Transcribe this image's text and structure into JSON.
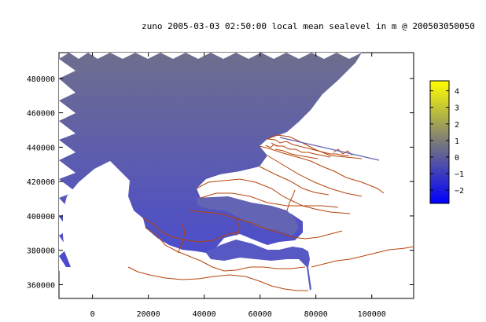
{
  "title": "zuno 2005-03-03 02:50:00 local mean sealevel in m @ 200503050050",
  "map": {
    "x_ticks": [
      "0",
      "20000",
      "40000",
      "60000",
      "80000",
      "100000"
    ],
    "x_tick_values": [
      0,
      20000,
      40000,
      60000,
      80000,
      100000
    ],
    "y_ticks": [
      "480000",
      "460000",
      "440000",
      "420000",
      "400000",
      "380000",
      "360000"
    ],
    "y_tick_values": [
      480000,
      460000,
      440000,
      420000,
      400000,
      380000,
      360000
    ],
    "xlim": [
      -12000,
      115000
    ],
    "ylim": [
      352000,
      495000
    ],
    "coastline_color": "#b5440a",
    "water_color_top": "#6e6e8e",
    "water_color_bottom": "#4a4ad0"
  },
  "colorbar": {
    "ticks": [
      "4",
      "3",
      "2",
      "1",
      "0",
      "−1",
      "−2"
    ],
    "tick_values": [
      4,
      3,
      2,
      1,
      0,
      -1,
      -2
    ],
    "range": [
      -2.8,
      4.6
    ],
    "colors": [
      "#0000ff",
      "#7a7a7a",
      "#ffff00"
    ]
  }
}
